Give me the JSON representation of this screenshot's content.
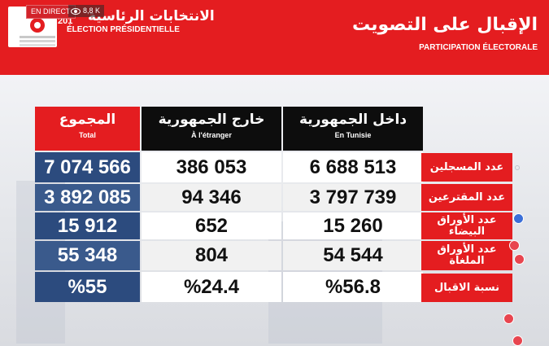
{
  "stream": {
    "live_label": "EN DIRECT",
    "viewers": "8,8 K"
  },
  "header": {
    "logo_year": "201",
    "election_ar": "الانتخابات الرئاسية",
    "election_fr": "ÉLECTION PRÉSIDENTIELLE",
    "title_ar": "الإقبال على التصويت",
    "title_fr": "PARTICIPATION ÉLECTORALE"
  },
  "table": {
    "columns": [
      {
        "ar": "المجموع",
        "fr": "Total"
      },
      {
        "ar": "خارج الجمهورية",
        "fr": "À l'étranger"
      },
      {
        "ar": "داخل الجمهورية",
        "fr": "En Tunisie"
      }
    ],
    "rows": [
      {
        "label": "عدد المسجلين",
        "total": "7 074 566",
        "abroad": "386 053",
        "tunisia": "6 688 513"
      },
      {
        "label": "عدد المقترعين",
        "total": "3 892 085",
        "abroad": "94 346",
        "tunisia": "3 797 739"
      },
      {
        "label": "عدد الأوراق البيضاء",
        "total": "15 912",
        "abroad": "652",
        "tunisia": "15 260"
      },
      {
        "label": "عدد الأوراق الملغاة",
        "total": "55 348",
        "abroad": "804",
        "tunisia": "54 544"
      },
      {
        "label": "نسبة الاقبال",
        "total": "%55",
        "abroad": "%24.4",
        "tunisia": "%56.8"
      }
    ]
  },
  "colors": {
    "brand_red": "#e41d20",
    "header_black": "#0d0d0d",
    "total_blue": "#2c4b7e"
  },
  "icons": [
    "eye-icon",
    "like-reaction-icon",
    "love-reaction-icon"
  ]
}
